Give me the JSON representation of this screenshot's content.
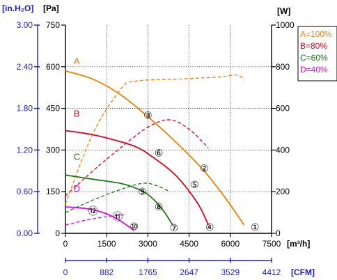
{
  "chart_data": {
    "type": "line",
    "axes": {
      "pressure_inh2o": {
        "label": "[in.H₂O]",
        "ticks": [
          "3.00",
          "2.40",
          "1.80",
          "1.20",
          "0.60",
          "0.00"
        ],
        "range": [
          0,
          3
        ],
        "color": "#1a1ad6"
      },
      "pressure_pa": {
        "label": "[Pa]",
        "ticks": [
          "750",
          "600",
          "450",
          "300",
          "150",
          "0"
        ],
        "range": [
          0,
          750
        ]
      },
      "power_w": {
        "label": "[W]",
        "ticks": [
          "1000",
          "800",
          "600",
          "400",
          "200",
          "0"
        ],
        "range": [
          0,
          1000
        ]
      },
      "flow_m3h": {
        "label": "[m³/h]",
        "ticks": [
          "0",
          "1500",
          "3000",
          "4500",
          "6000",
          "7500"
        ],
        "range": [
          0,
          7500
        ]
      },
      "flow_cfm": {
        "label": "[CFM]",
        "ticks": [
          "0",
          "882",
          "1765",
          "2647",
          "3529",
          "4412"
        ],
        "range": [
          0,
          4412
        ],
        "color": "#1a1ad6"
      }
    },
    "grid": true,
    "legend": {
      "position": "top-right",
      "entries": [
        {
          "label": "A=100%",
          "color": "#f07f00"
        },
        {
          "label": "B=80%",
          "color": "#e3001b"
        },
        {
          "label": "C=60%",
          "color": "#1a7a10"
        },
        {
          "label": "D=40%",
          "color": "#e600e6"
        }
      ]
    },
    "series": [
      {
        "name": "A",
        "color": "#f07f00",
        "pressure_pa": [
          [
            0,
            585
          ],
          [
            1000,
            555
          ],
          [
            2000,
            500
          ],
          [
            3000,
            420
          ],
          [
            4000,
            330
          ],
          [
            5000,
            230
          ],
          [
            5800,
            130
          ],
          [
            6500,
            30
          ]
        ],
        "power_w": [
          [
            0,
            140
          ],
          [
            1000,
            480
          ],
          [
            2000,
            690
          ],
          [
            2500,
            730
          ],
          [
            4000,
            740
          ],
          [
            5500,
            750
          ],
          [
            6250,
            760
          ],
          [
            6500,
            735
          ]
        ]
      },
      {
        "name": "B",
        "color": "#e3001b",
        "pressure_pa": [
          [
            0,
            370
          ],
          [
            1000,
            355
          ],
          [
            2000,
            330
          ],
          [
            2600,
            310
          ],
          [
            3100,
            280
          ],
          [
            4000,
            210
          ],
          [
            4800,
            110
          ],
          [
            5200,
            30
          ]
        ],
        "power_w": [
          [
            0,
            180
          ],
          [
            1000,
            300
          ],
          [
            2000,
            410
          ],
          [
            3000,
            510
          ],
          [
            3800,
            545
          ],
          [
            4500,
            500
          ],
          [
            5200,
            410
          ]
        ]
      },
      {
        "name": "C",
        "color": "#1a7a10",
        "pressure_pa": [
          [
            0,
            210
          ],
          [
            1000,
            195
          ],
          [
            2000,
            180
          ],
          [
            2500,
            165
          ],
          [
            3000,
            140
          ],
          [
            3500,
            90
          ],
          [
            3900,
            30
          ]
        ],
        "power_w": [
          [
            0,
            100
          ],
          [
            1000,
            160
          ],
          [
            2000,
            210
          ],
          [
            2800,
            240
          ],
          [
            3300,
            230
          ],
          [
            3800,
            200
          ]
        ]
      },
      {
        "name": "D",
        "color": "#e600e6",
        "pressure_pa": [
          [
            0,
            95
          ],
          [
            500,
            92
          ],
          [
            1000,
            85
          ],
          [
            1500,
            70
          ],
          [
            2000,
            45
          ],
          [
            2500,
            10
          ]
        ],
        "power_w": [
          [
            0,
            40
          ],
          [
            800,
            65
          ],
          [
            1500,
            80
          ],
          [
            2200,
            90
          ]
        ]
      }
    ],
    "annotations": [
      {
        "series": "A",
        "label": "A",
        "x": 300,
        "y": 610
      },
      {
        "series": "B",
        "label": "B",
        "x": 300,
        "y": 420
      },
      {
        "series": "C",
        "label": "C",
        "x": 300,
        "y": 265
      },
      {
        "series": "D",
        "label": "D",
        "x": 300,
        "y": 150
      }
    ],
    "points": [
      {
        "label": "①",
        "x": 6900,
        "y": 22
      },
      {
        "label": "②",
        "x": 5050,
        "y": 235
      },
      {
        "label": "③",
        "x": 3000,
        "y": 425
      },
      {
        "label": "④",
        "x": 5250,
        "y": 22
      },
      {
        "label": "⑤",
        "x": 4700,
        "y": 175
      },
      {
        "label": "⑥",
        "x": 3400,
        "y": 290
      },
      {
        "label": "⑦",
        "x": 3950,
        "y": 20
      },
      {
        "label": "⑧",
        "x": 3400,
        "y": 95
      },
      {
        "label": "⑨",
        "x": 2800,
        "y": 150
      },
      {
        "label": "⑩",
        "x": 2500,
        "y": 25
      },
      {
        "label": "⑪",
        "x": 1900,
        "y": 60
      },
      {
        "label": "⑫",
        "x": 1000,
        "y": 80
      }
    ]
  }
}
